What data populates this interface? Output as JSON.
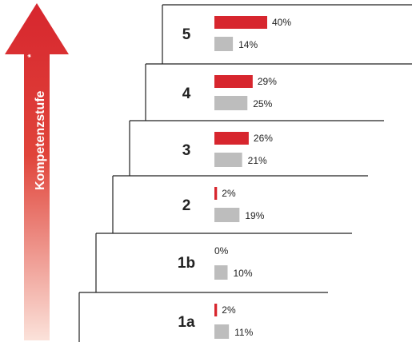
{
  "chart_data": {
    "type": "bar",
    "orientation": "horizontal",
    "categories": [
      "5",
      "4",
      "3",
      "2",
      "1b",
      "1a"
    ],
    "series": [
      {
        "values": [
          40,
          29,
          26,
          2,
          0,
          2
        ],
        "labels": [
          "40%",
          "29%",
          "26%",
          "2%",
          "0%",
          "2%"
        ]
      },
      {
        "values": [
          14,
          25,
          21,
          19,
          10,
          11
        ],
        "labels": [
          "14%",
          "25%",
          "21%",
          "19%",
          "10%",
          "11%"
        ]
      }
    ],
    "ylabel": "Kompetenzstufe",
    "ylabel_mark": "*",
    "xlim": [
      0,
      40
    ]
  },
  "colors": {
    "series_1": "#d7262e",
    "series_2": "#bdbdbd",
    "arrow_top": "#d7262e",
    "arrow_bottom": "#fbe2da"
  }
}
